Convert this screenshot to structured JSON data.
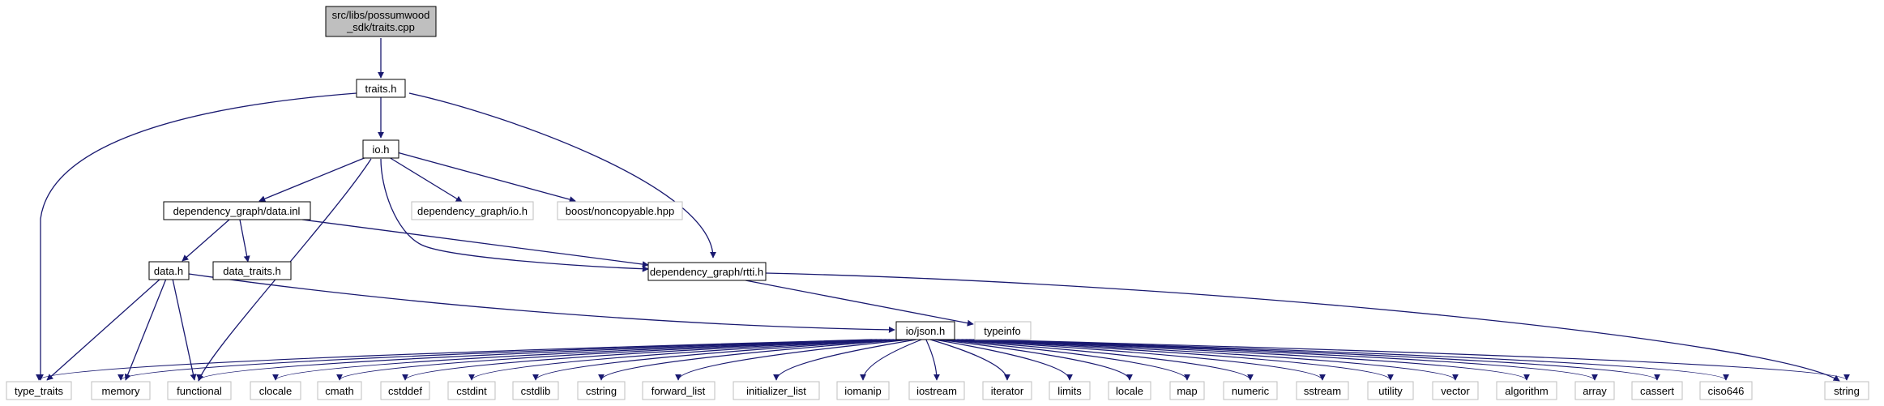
{
  "root": {
    "label_line1": "src/libs/possumwood",
    "label_line2": "_sdk/traits.cpp"
  },
  "nodes": {
    "traits_h": "traits.h",
    "io_h": "io.h",
    "data_inl": "dependency_graph/data.inl",
    "dg_io_h": "dependency_graph/io.h",
    "noncopyable": "boost/noncopyable.hpp",
    "data_h": "data.h",
    "data_traits_h": "data_traits.h",
    "rtti_h": "dependency_graph/rtti.h",
    "json_h": "io/json.h",
    "typeinfo": "typeinfo"
  },
  "bottom": {
    "type_traits": "type_traits",
    "memory": "memory",
    "functional": "functional",
    "clocale": "clocale",
    "cmath": "cmath",
    "cstddef": "cstddef",
    "cstdint": "cstdint",
    "cstdlib": "cstdlib",
    "cstring": "cstring",
    "forward_list": "forward_list",
    "initializer_list": "initializer_list",
    "iomanip": "iomanip",
    "iostream": "iostream",
    "iterator": "iterator",
    "limits": "limits",
    "locale": "locale",
    "map": "map",
    "numeric": "numeric",
    "sstream": "sstream",
    "utility": "utility",
    "vector": "vector",
    "algorithm": "algorithm",
    "array": "array",
    "cassert": "cassert",
    "ciso646": "ciso646",
    "string": "string"
  },
  "colors": {
    "edge": "#191970",
    "root_fill": "#bfbfbf",
    "node_border": "#000000",
    "external_border": "#bfbfbf"
  }
}
